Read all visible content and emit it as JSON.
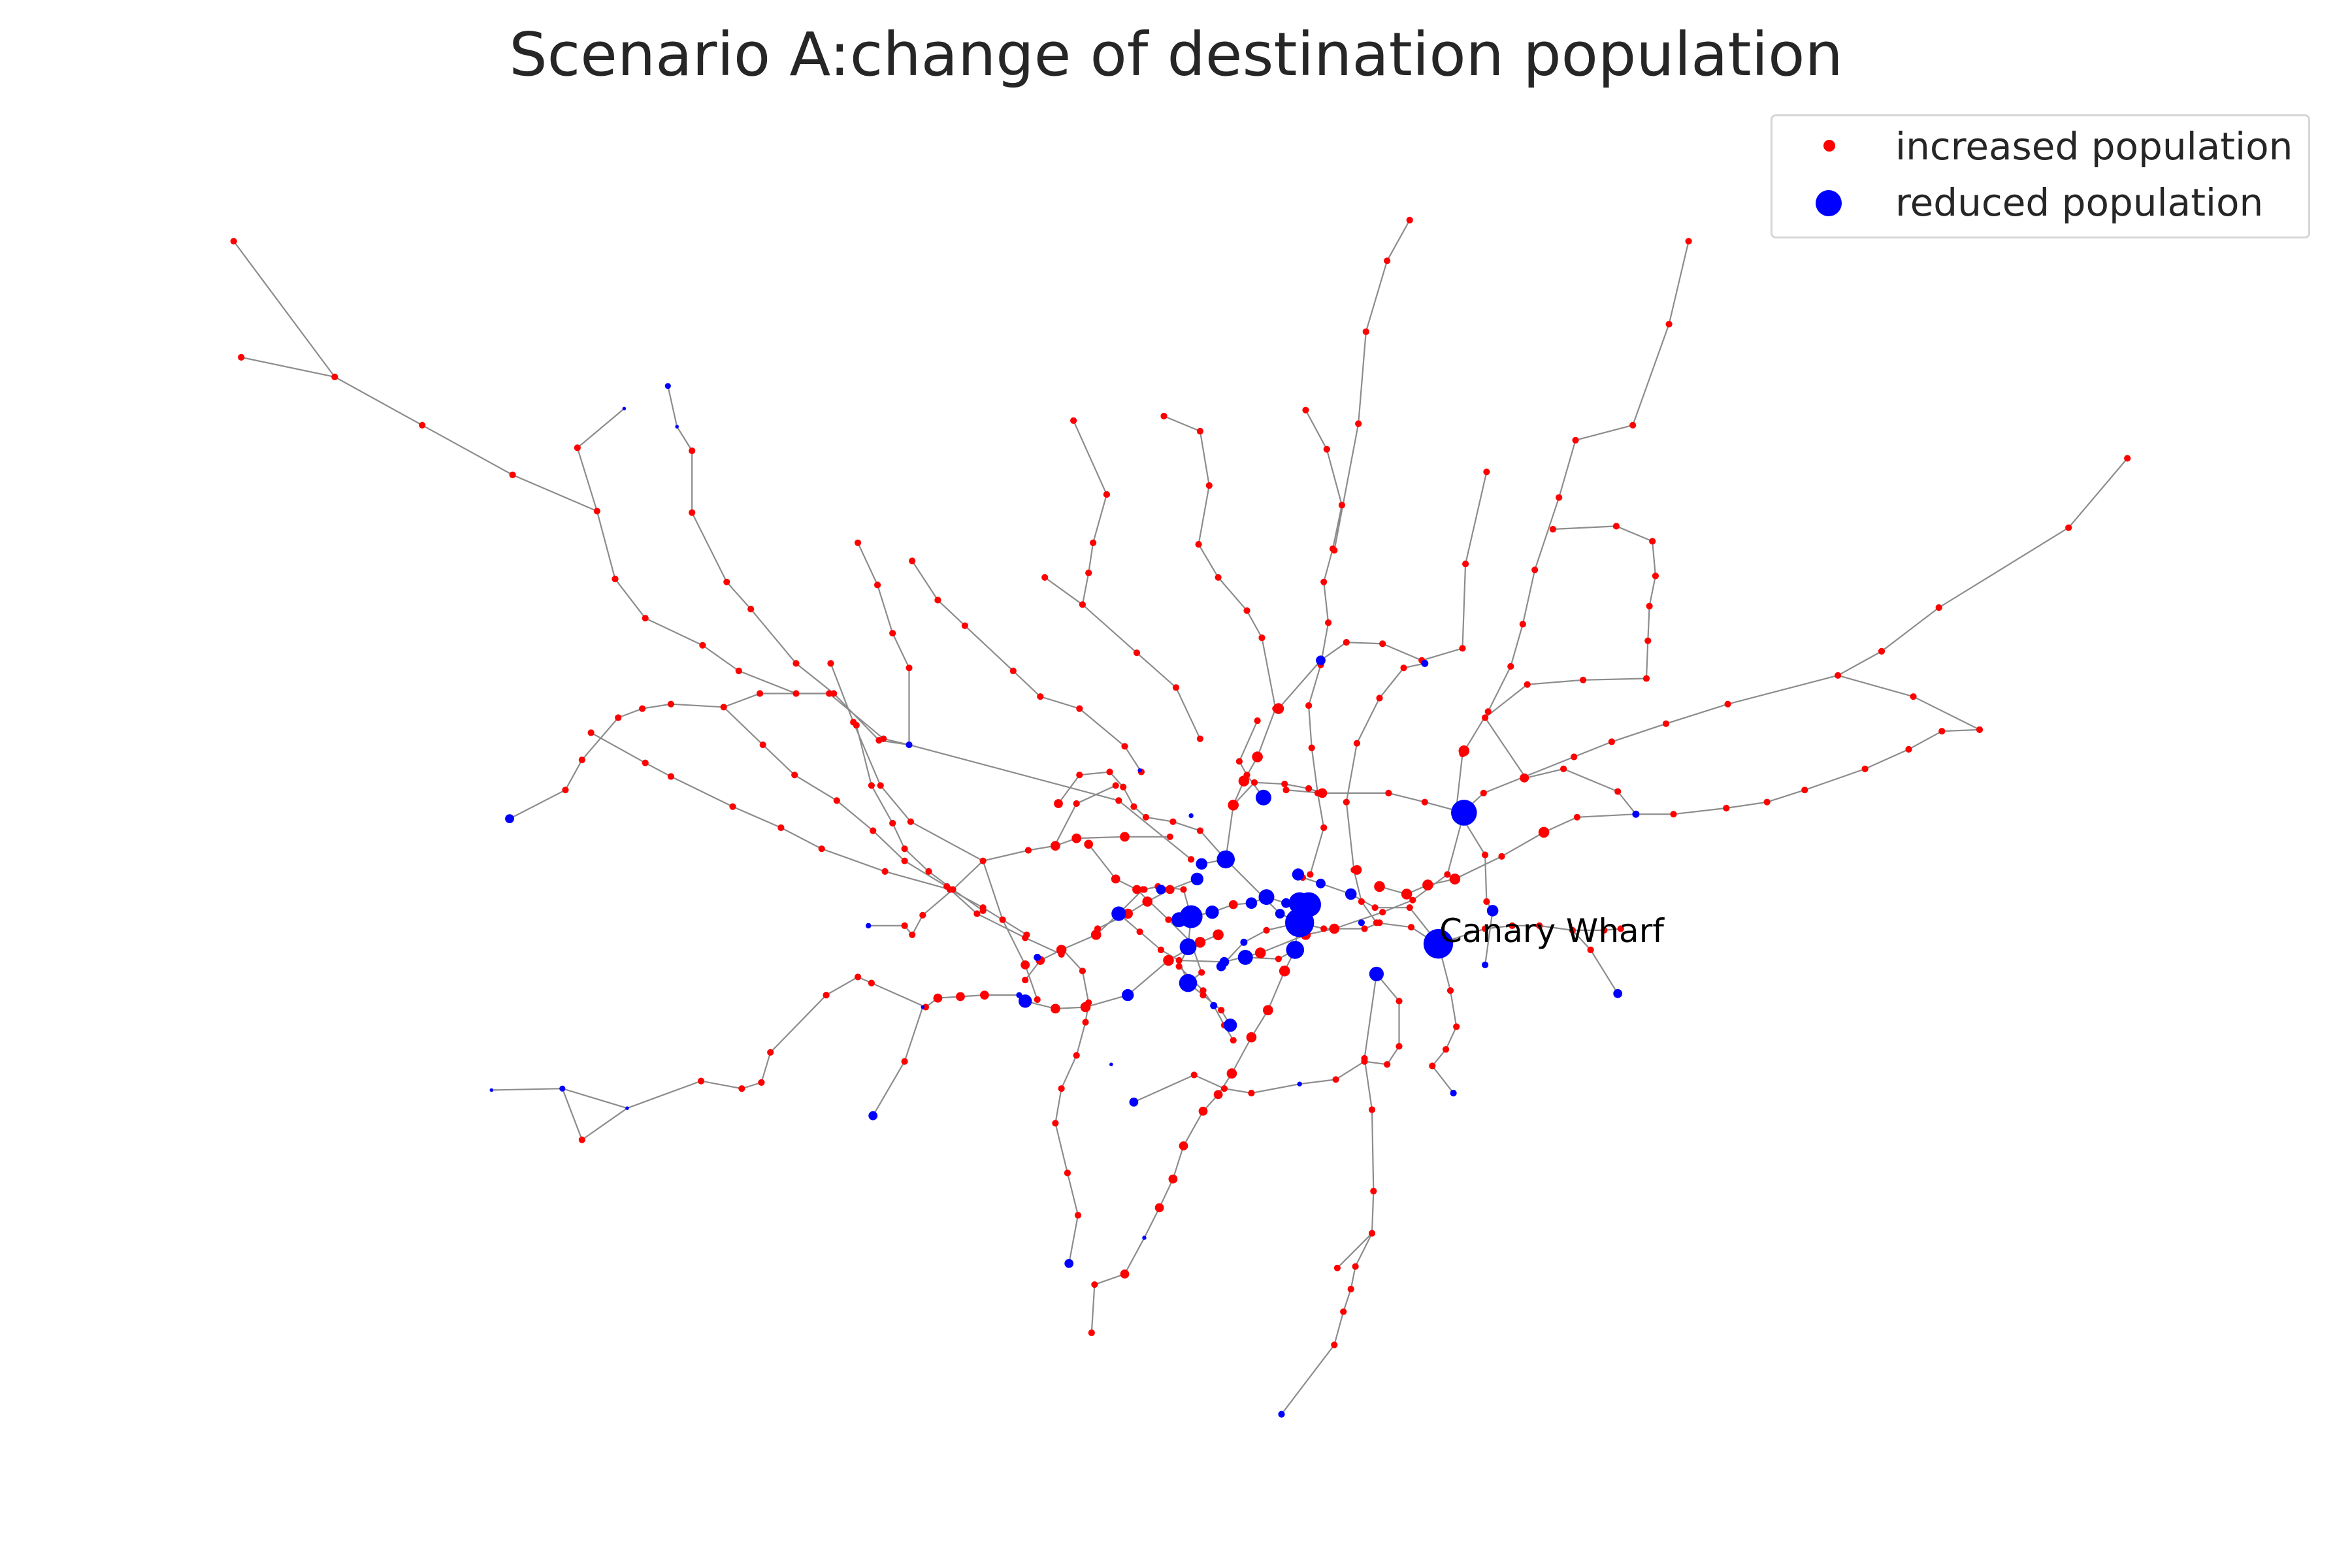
{
  "title": "Scenario A:change of destination population",
  "legend": {
    "placement": "upper-right",
    "items": [
      {
        "label": "increased population",
        "color": "#ff0000",
        "marker": "small-dot"
      },
      {
        "label": "reduced population",
        "color": "#0000ff",
        "marker": "large-dot"
      }
    ]
  },
  "annotation": "Canary Wharf",
  "colors": {
    "increased": "#ff0000",
    "reduced": "#0000ff",
    "edge": "#8c8c8c",
    "text": "#262626"
  }
}
